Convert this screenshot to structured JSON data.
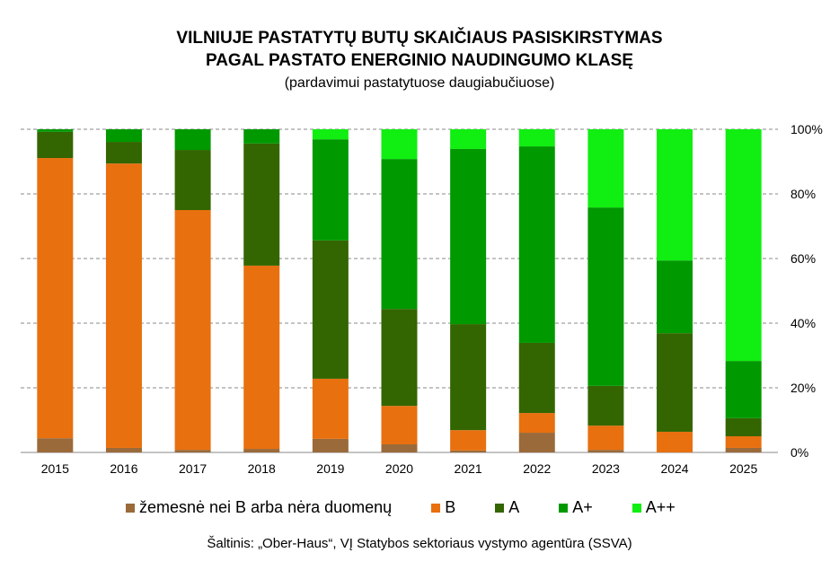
{
  "chart_data": {
    "type": "bar",
    "stacked": true,
    "title": "VILNIUJE PASTATYTŲ BUTŲ SKAIČIAUS PASISKIRSTYMAS",
    "title_line2": "PAGAL PASTATO ENERGINIO NAUDINGUMO KLASĘ",
    "subtitle": "(pardavimui pastatytuose daugiabučiuose)",
    "xlabel": "",
    "ylabel": "",
    "ylim": [
      0,
      100
    ],
    "yticks": [
      "0%",
      "20%",
      "40%",
      "60%",
      "80%",
      "100%"
    ],
    "grid": true,
    "legend_position": "bottom",
    "categories": [
      "2015",
      "2016",
      "2017",
      "2018",
      "2019",
      "2020",
      "2021",
      "2022",
      "2023",
      "2024",
      "2025"
    ],
    "series": [
      {
        "name": "žemesnė nei B arba nėra duomenų",
        "color": "#9b6a3a",
        "values": [
          4.4,
          1.4,
          0.8,
          1.1,
          4.2,
          2.5,
          0.6,
          6.1,
          0.8,
          0,
          1.4
        ]
      },
      {
        "name": "B",
        "color": "#e8700f",
        "values": [
          86.7,
          88,
          74.2,
          56.7,
          18.6,
          11.9,
          6.3,
          6.1,
          7.5,
          6.4,
          3.6
        ]
      },
      {
        "name": "A",
        "color": "#336600",
        "values": [
          8.1,
          6.7,
          18.6,
          37.8,
          42.8,
          30,
          32.8,
          21.7,
          12.3,
          30.5,
          5.6
        ]
      },
      {
        "name": "A+",
        "color": "#009900",
        "values": [
          0.8,
          3.9,
          6.4,
          4.4,
          31.3,
          46.4,
          54.2,
          60.8,
          55.2,
          22.5,
          17.7
        ]
      },
      {
        "name": "A++",
        "color": "#11ee11",
        "values": [
          0,
          0,
          0,
          0,
          3.1,
          9.2,
          6.1,
          5.3,
          24.2,
          40.6,
          71.7
        ]
      }
    ],
    "source": "Šaltinis: „Ober-Haus“, VĮ Statybos sektoriaus vystymo agentūra (SSVA)"
  }
}
